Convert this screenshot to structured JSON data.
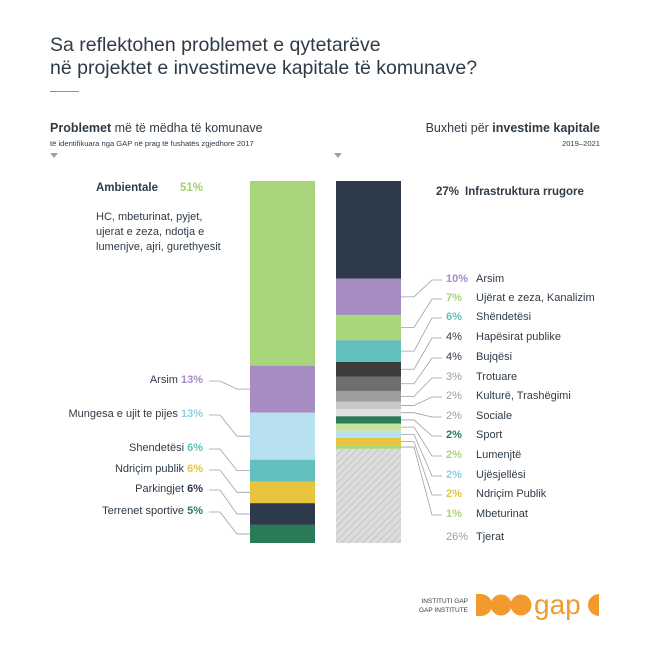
{
  "title": {
    "line1": "Sa reflektohen problemet e qytetarëve",
    "line2": "në projektet e investimeve kapitale të komunave?"
  },
  "left_header": {
    "bold": "Problemet",
    "rest": " më të mëdha të komunave",
    "sub": "të identifikuara nga GAP në prag të fushatës zgjedhore 2017"
  },
  "right_header": {
    "rest": "Buxheti për ",
    "bold": "investime kapitale",
    "sub": "2019–2021"
  },
  "ambientale": {
    "name": "Ambientale",
    "pct": "51%",
    "desc": "HC, mbeturinat, pyjet, ujerat e zeza, ndotja e lumenjve, ajri, gurethyesit"
  },
  "infra_label": {
    "pct": "27%",
    "name": "Infrastruktura rrugore"
  },
  "chart_data": [
    {
      "type": "bar",
      "stacked": true,
      "title": "Problemet më të mëdha të komunave",
      "categories": [
        "Ambientale",
        "Arsim",
        "Mungesa e ujit te pijes",
        "Shendetësi",
        "Ndriçim publik",
        "Parkingjet",
        "Terrenet sportive"
      ],
      "values": [
        51,
        13,
        13,
        6,
        6,
        6,
        5
      ],
      "labels": [
        "51%",
        "13%",
        "13%",
        "6%",
        "6%",
        "6%",
        "5%"
      ],
      "colors": [
        "#a9d57b",
        "#a68cc2",
        "#b7e1ee",
        "#64c0bd",
        "#e6c43f",
        "#2d3a4c",
        "#2a7b58"
      ]
    },
    {
      "type": "bar",
      "stacked": true,
      "title": "Buxheti për investime kapitale",
      "categories": [
        "Infrastruktura rrugore",
        "Arsim",
        "Ujërat e zeza, Kanalizim",
        "Shëndetësi",
        "Hapësirat publike",
        "Bujqësi",
        "Trotuare",
        "Kulturë, Trashëgimi",
        "Sociale",
        "Sport",
        "Lumenjtë",
        "Ujësjellësi",
        "Ndriçim Publik",
        "Mbeturinat",
        "Tjerat"
      ],
      "values": [
        27,
        10,
        7,
        6,
        4,
        4,
        3,
        2,
        2,
        2,
        2,
        2,
        2,
        1,
        26
      ],
      "labels": [
        "27%",
        "10%",
        "7%",
        "6%",
        "4%",
        "4%",
        "3%",
        "2%",
        "2%",
        "2%",
        "2%",
        "2%",
        "2%",
        "1%",
        "26%"
      ],
      "colors": [
        "#2d3a4c",
        "#a68cc2",
        "#a9d57b",
        "#64c0bd",
        "#3c3c3c",
        "#6e6e6e",
        "#9e9e9e",
        "#c8c8c8",
        "#e0e0e0",
        "#2a7b58",
        "#c6e3a0",
        "#b7e1ee",
        "#e6c43f",
        "#a9d57b",
        "#d9d9d9"
      ],
      "pct_colors": [
        "#2f3b47",
        "#a68cc2",
        "#a9d57b",
        "#64c0bd",
        "#2f3b47",
        "#2f3b47",
        "#9e9e9e",
        "#9e9e9e",
        "#9e9e9e",
        "#2a7b58",
        "#a9d57b",
        "#8fd0e6",
        "#e6c43f",
        "#a9d57b",
        "#9e9e9e"
      ],
      "hatched_last": true
    }
  ],
  "logo": {
    "line1": "INSTITUTI GAP",
    "line2": "GAP INSTITUTE",
    "text": "gap",
    "color": "#f29a2e"
  }
}
